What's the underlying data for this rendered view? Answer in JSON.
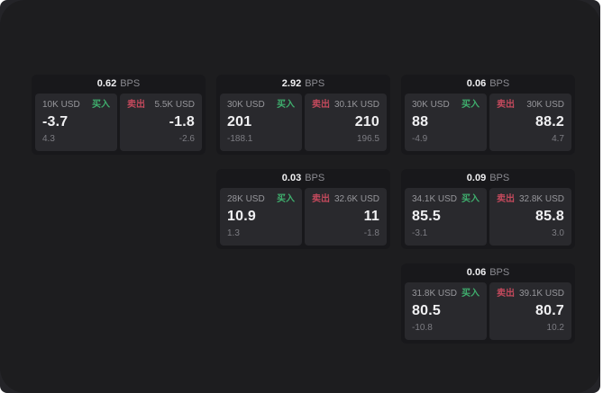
{
  "app": {
    "description": "dark quote dashboard with buy/sell BPS spread cards",
    "colors": {
      "surface": "#1d1d1f",
      "card_bg": "#18181b",
      "panel_bg": "#29292d",
      "buy_green": "#3fae6d",
      "sell_red": "#c2495c",
      "text_primary": "#f0f0f2",
      "text_secondary": "#96969b",
      "text_dim": "#7c7c82"
    }
  },
  "labels": {
    "buy": "买入",
    "sell": "卖出",
    "bps_unit": "BPS"
  },
  "cards": [
    {
      "row": 1,
      "col": 1,
      "bps": "0.62",
      "buy": {
        "size": "10K USD",
        "price": "-3.7",
        "delta": "4.3"
      },
      "sell": {
        "size": "5.5K USD",
        "price": "-1.8",
        "delta": "-2.6"
      }
    },
    {
      "row": 1,
      "col": 2,
      "bps": "2.92",
      "buy": {
        "size": "30K USD",
        "price": "201",
        "delta": "-188.1"
      },
      "sell": {
        "size": "30.1K USD",
        "price": "210",
        "delta": "196.5"
      }
    },
    {
      "row": 1,
      "col": 3,
      "bps": "0.06",
      "buy": {
        "size": "30K USD",
        "price": "88",
        "delta": "-4.9"
      },
      "sell": {
        "size": "30K USD",
        "price": "88.2",
        "delta": "4.7"
      }
    },
    {
      "row": 2,
      "col": 2,
      "bps": "0.03",
      "buy": {
        "size": "28K USD",
        "price": "10.9",
        "delta": "1.3"
      },
      "sell": {
        "size": "32.6K USD",
        "price": "11",
        "delta": "-1.8"
      }
    },
    {
      "row": 2,
      "col": 3,
      "bps": "0.09",
      "buy": {
        "size": "34.1K USD",
        "price": "85.5",
        "delta": "-3.1"
      },
      "sell": {
        "size": "32.8K USD",
        "price": "85.8",
        "delta": "3.0"
      }
    },
    {
      "row": 3,
      "col": 3,
      "bps": "0.06",
      "buy": {
        "size": "31.8K USD",
        "price": "80.5",
        "delta": "-10.8"
      },
      "sell": {
        "size": "39.1K USD",
        "price": "80.7",
        "delta": "10.2"
      }
    }
  ]
}
